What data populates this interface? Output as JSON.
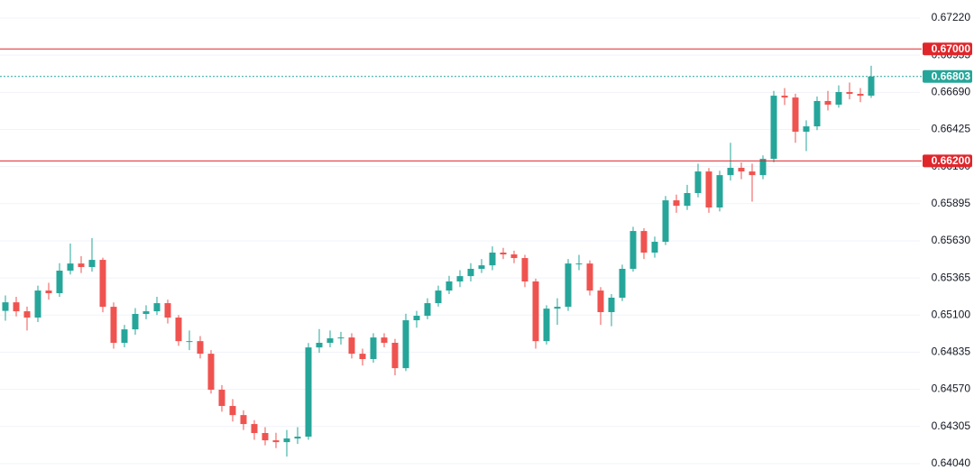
{
  "chart_data": {
    "type": "candlestick",
    "up_color": "#26a69a",
    "down_color": "#ef5350",
    "grid": true,
    "ylim": [
      0.63994,
      0.67349
    ],
    "yticks": [
      {
        "value": 0.6722,
        "label": "0.67220"
      },
      {
        "value": 0.66955,
        "label": "0.66955"
      },
      {
        "value": 0.6669,
        "label": "0.66690"
      },
      {
        "value": 0.66425,
        "label": "0.66425"
      },
      {
        "value": 0.6616,
        "label": "0.66160"
      },
      {
        "value": 0.65895,
        "label": "0.65895"
      },
      {
        "value": 0.6563,
        "label": "0.65630"
      },
      {
        "value": 0.65365,
        "label": "0.65365"
      },
      {
        "value": 0.651,
        "label": "0.65100"
      },
      {
        "value": 0.64835,
        "label": "0.64835"
      },
      {
        "value": 0.6457,
        "label": "0.64570"
      },
      {
        "value": 0.64305,
        "label": "0.64305"
      },
      {
        "value": 0.6404,
        "label": "0.64040"
      }
    ],
    "levels": [
      {
        "value": 0.67,
        "label": "0.67000",
        "color": "#e0262b",
        "style": "solid"
      },
      {
        "value": 0.66803,
        "label": "0.66803",
        "color": "#26a69a",
        "style": "dotted"
      },
      {
        "value": 0.662,
        "label": "0.66200",
        "color": "#e0262b",
        "style": "solid"
      }
    ],
    "open": [
      0.6513,
      0.65191,
      0.65127,
      0.65082,
      0.65275,
      0.65256,
      0.65417,
      0.65468,
      0.65443,
      0.65494,
      0.65159,
      0.64902,
      0.64998,
      0.65108,
      0.65127,
      0.65185,
      0.65082,
      0.64914,
      0.64914,
      0.64824,
      0.64567,
      0.64451,
      0.64386,
      0.64322,
      0.64258,
      0.64206,
      0.64193,
      0.64219,
      0.64232,
      0.64869,
      0.64902,
      0.64934,
      0.6494,
      0.64824,
      0.64786,
      0.6494,
      0.64902,
      0.64721,
      0.65063,
      0.65095,
      0.65185,
      0.65275,
      0.6534,
      0.65378,
      0.6543,
      0.65455,
      0.65546,
      0.65533,
      0.65507,
      0.6534,
      0.64914,
      0.65146,
      0.65159,
      0.65468,
      0.65468,
      0.65275,
      0.65121,
      0.65224,
      0.6543,
      0.657,
      0.65546,
      0.65623,
      0.65919,
      0.6588,
      0.65971,
      0.66125,
      0.65868,
      0.66099,
      0.66151,
      0.66125,
      0.66099,
      0.66215,
      0.66666,
      0.66653,
      0.66409,
      0.66447,
      0.66628,
      0.66602,
      0.66692,
      0.66679,
      0.66666
    ],
    "high": [
      0.6524,
      0.6523,
      0.6516,
      0.6531,
      0.6533,
      0.6547,
      0.6561,
      0.6552,
      0.6565,
      0.6551,
      0.6519,
      0.6503,
      0.6515,
      0.6517,
      0.6523,
      0.6521,
      0.651,
      0.6499,
      0.6495,
      0.6485,
      0.646,
      0.645,
      0.6442,
      0.6435,
      0.643,
      0.6426,
      0.6428,
      0.643,
      0.649,
      0.65,
      0.6499,
      0.6498,
      0.6497,
      0.6486,
      0.6497,
      0.6497,
      0.6493,
      0.6511,
      0.6513,
      0.6522,
      0.6531,
      0.6538,
      0.6542,
      0.6547,
      0.655,
      0.6559,
      0.6558,
      0.6556,
      0.6553,
      0.6536,
      0.6517,
      0.6522,
      0.655,
      0.6553,
      0.6549,
      0.653,
      0.6525,
      0.6546,
      0.6573,
      0.6572,
      0.6566,
      0.6595,
      0.6596,
      0.6603,
      0.6618,
      0.6615,
      0.6613,
      0.6633,
      0.6619,
      0.6618,
      0.6624,
      0.667,
      0.6672,
      0.6668,
      0.6649,
      0.6666,
      0.667,
      0.6674,
      0.6676,
      0.6672,
      0.6688
    ],
    "low": [
      0.6506,
      0.6509,
      0.6499,
      0.6505,
      0.6521,
      0.6523,
      0.6539,
      0.654,
      0.6541,
      0.6512,
      0.6486,
      0.6487,
      0.6496,
      0.6507,
      0.651,
      0.6504,
      0.6488,
      0.6485,
      0.6479,
      0.6454,
      0.6441,
      0.6434,
      0.6428,
      0.6421,
      0.6417,
      0.6415,
      0.6409,
      0.6418,
      0.6421,
      0.6483,
      0.6487,
      0.6489,
      0.6479,
      0.6474,
      0.6476,
      0.6487,
      0.6467,
      0.647,
      0.6501,
      0.6507,
      0.6516,
      0.6525,
      0.653,
      0.6534,
      0.654,
      0.6542,
      0.655,
      0.6547,
      0.653,
      0.6486,
      0.6489,
      0.6503,
      0.6513,
      0.6542,
      0.6524,
      0.6503,
      0.6502,
      0.652,
      0.6541,
      0.655,
      0.6551,
      0.656,
      0.6583,
      0.6585,
      0.6594,
      0.6583,
      0.6584,
      0.6606,
      0.6607,
      0.6591,
      0.6607,
      0.6619,
      0.666,
      0.6633,
      0.6627,
      0.6642,
      0.6656,
      0.6658,
      0.6664,
      0.6662,
      0.6665
    ],
    "close": [
      0.65191,
      0.65127,
      0.65082,
      0.65275,
      0.65256,
      0.65417,
      0.65468,
      0.65443,
      0.65494,
      0.65159,
      0.64902,
      0.64998,
      0.65108,
      0.65127,
      0.65185,
      0.65082,
      0.64914,
      0.64914,
      0.64824,
      0.64567,
      0.64451,
      0.64386,
      0.64322,
      0.64258,
      0.64206,
      0.64193,
      0.64219,
      0.64232,
      0.64869,
      0.64902,
      0.64934,
      0.6494,
      0.64824,
      0.64786,
      0.6494,
      0.64902,
      0.64721,
      0.65063,
      0.65095,
      0.65185,
      0.65275,
      0.6534,
      0.65378,
      0.6543,
      0.65455,
      0.65546,
      0.65533,
      0.65507,
      0.6534,
      0.64914,
      0.65146,
      0.65159,
      0.65468,
      0.65468,
      0.65275,
      0.65121,
      0.65224,
      0.6543,
      0.657,
      0.65546,
      0.65623,
      0.65919,
      0.6588,
      0.65971,
      0.66125,
      0.65868,
      0.66099,
      0.66151,
      0.66125,
      0.66099,
      0.66215,
      0.66666,
      0.66653,
      0.66409,
      0.66447,
      0.66628,
      0.66602,
      0.66692,
      0.66679,
      0.66666,
      0.66803
    ]
  }
}
